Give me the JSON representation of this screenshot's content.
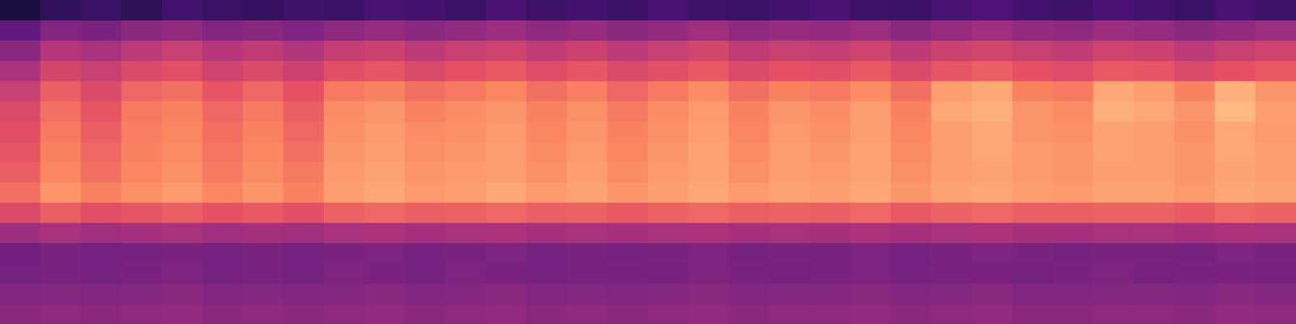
{
  "chart_data": {
    "type": "heatmap",
    "tick_labels": false,
    "grid": false,
    "color_range": [
      0,
      1
    ],
    "cells": [
      [
        0.12,
        0.18,
        0.2,
        0.17,
        0.22,
        0.2,
        0.19,
        0.21,
        0.2,
        0.23,
        0.22,
        0.2,
        0.24,
        0.21,
        0.22,
        0.2,
        0.23,
        0.21,
        0.2,
        0.22,
        0.24,
        0.21,
        0.2,
        0.23,
        0.25,
        0.22,
        0.21,
        0.24,
        0.22,
        0.2,
        0.23,
        0.21
      ],
      [
        0.3,
        0.38,
        0.36,
        0.4,
        0.42,
        0.38,
        0.4,
        0.37,
        0.41,
        0.43,
        0.4,
        0.42,
        0.44,
        0.41,
        0.43,
        0.4,
        0.42,
        0.45,
        0.41,
        0.43,
        0.42,
        0.44,
        0.4,
        0.43,
        0.45,
        0.42,
        0.41,
        0.44,
        0.43,
        0.4,
        0.42,
        0.44
      ],
      [
        0.4,
        0.5,
        0.47,
        0.52,
        0.55,
        0.5,
        0.53,
        0.49,
        0.54,
        0.56,
        0.52,
        0.55,
        0.57,
        0.53,
        0.56,
        0.52,
        0.55,
        0.58,
        0.53,
        0.55,
        0.54,
        0.57,
        0.52,
        0.56,
        0.58,
        0.55,
        0.53,
        0.57,
        0.56,
        0.52,
        0.55,
        0.57
      ],
      [
        0.48,
        0.58,
        0.55,
        0.6,
        0.62,
        0.57,
        0.6,
        0.56,
        0.62,
        0.64,
        0.6,
        0.63,
        0.65,
        0.61,
        0.64,
        0.6,
        0.62,
        0.65,
        0.6,
        0.63,
        0.62,
        0.65,
        0.6,
        0.64,
        0.66,
        0.63,
        0.61,
        0.65,
        0.64,
        0.6,
        0.63,
        0.65
      ],
      [
        0.55,
        0.66,
        0.6,
        0.68,
        0.7,
        0.64,
        0.68,
        0.63,
        0.72,
        0.74,
        0.7,
        0.72,
        0.75,
        0.7,
        0.73,
        0.68,
        0.72,
        0.76,
        0.7,
        0.74,
        0.72,
        0.76,
        0.7,
        0.8,
        0.82,
        0.74,
        0.72,
        0.82,
        0.8,
        0.74,
        0.84,
        0.78
      ],
      [
        0.6,
        0.7,
        0.64,
        0.72,
        0.74,
        0.68,
        0.72,
        0.66,
        0.76,
        0.78,
        0.74,
        0.76,
        0.78,
        0.74,
        0.77,
        0.72,
        0.76,
        0.79,
        0.74,
        0.78,
        0.76,
        0.8,
        0.74,
        0.82,
        0.84,
        0.78,
        0.76,
        0.84,
        0.82,
        0.78,
        0.86,
        0.8
      ],
      [
        0.62,
        0.72,
        0.66,
        0.73,
        0.75,
        0.7,
        0.74,
        0.68,
        0.77,
        0.79,
        0.76,
        0.77,
        0.79,
        0.75,
        0.78,
        0.74,
        0.77,
        0.8,
        0.75,
        0.79,
        0.77,
        0.8,
        0.75,
        0.8,
        0.82,
        0.78,
        0.77,
        0.81,
        0.8,
        0.77,
        0.82,
        0.79
      ],
      [
        0.64,
        0.74,
        0.68,
        0.74,
        0.76,
        0.71,
        0.75,
        0.7,
        0.78,
        0.8,
        0.77,
        0.78,
        0.8,
        0.76,
        0.79,
        0.75,
        0.78,
        0.81,
        0.76,
        0.8,
        0.78,
        0.81,
        0.76,
        0.8,
        0.82,
        0.79,
        0.78,
        0.81,
        0.8,
        0.78,
        0.82,
        0.8
      ],
      [
        0.66,
        0.75,
        0.7,
        0.75,
        0.77,
        0.72,
        0.76,
        0.72,
        0.79,
        0.81,
        0.78,
        0.79,
        0.8,
        0.77,
        0.8,
        0.76,
        0.79,
        0.81,
        0.77,
        0.8,
        0.79,
        0.81,
        0.77,
        0.8,
        0.81,
        0.79,
        0.78,
        0.8,
        0.8,
        0.78,
        0.81,
        0.8
      ],
      [
        0.7,
        0.78,
        0.74,
        0.77,
        0.79,
        0.75,
        0.78,
        0.74,
        0.8,
        0.82,
        0.79,
        0.8,
        0.82,
        0.79,
        0.81,
        0.78,
        0.8,
        0.82,
        0.79,
        0.81,
        0.8,
        0.82,
        0.78,
        0.81,
        0.82,
        0.8,
        0.79,
        0.81,
        0.81,
        0.79,
        0.82,
        0.81
      ],
      [
        0.6,
        0.66,
        0.62,
        0.64,
        0.66,
        0.63,
        0.65,
        0.62,
        0.67,
        0.68,
        0.66,
        0.67,
        0.68,
        0.66,
        0.67,
        0.65,
        0.67,
        0.68,
        0.66,
        0.67,
        0.66,
        0.68,
        0.65,
        0.67,
        0.68,
        0.66,
        0.66,
        0.67,
        0.67,
        0.65,
        0.68,
        0.67
      ],
      [
        0.44,
        0.47,
        0.45,
        0.46,
        0.47,
        0.45,
        0.46,
        0.45,
        0.47,
        0.48,
        0.46,
        0.47,
        0.48,
        0.46,
        0.47,
        0.46,
        0.47,
        0.48,
        0.46,
        0.47,
        0.46,
        0.48,
        0.46,
        0.47,
        0.48,
        0.46,
        0.46,
        0.47,
        0.47,
        0.46,
        0.48,
        0.47
      ],
      [
        0.34,
        0.36,
        0.35,
        0.35,
        0.36,
        0.35,
        0.36,
        0.35,
        0.36,
        0.37,
        0.35,
        0.36,
        0.37,
        0.35,
        0.36,
        0.35,
        0.36,
        0.37,
        0.35,
        0.36,
        0.36,
        0.37,
        0.35,
        0.36,
        0.37,
        0.36,
        0.35,
        0.36,
        0.36,
        0.35,
        0.37,
        0.36
      ],
      [
        0.35,
        0.36,
        0.35,
        0.36,
        0.37,
        0.35,
        0.36,
        0.35,
        0.37,
        0.36,
        0.35,
        0.37,
        0.36,
        0.35,
        0.36,
        0.36,
        0.35,
        0.37,
        0.36,
        0.35,
        0.36,
        0.37,
        0.35,
        0.36,
        0.36,
        0.35,
        0.36,
        0.37,
        0.35,
        0.36,
        0.36,
        0.35
      ],
      [
        0.38,
        0.39,
        0.38,
        0.39,
        0.4,
        0.38,
        0.39,
        0.38,
        0.39,
        0.4,
        0.38,
        0.39,
        0.4,
        0.38,
        0.39,
        0.38,
        0.39,
        0.4,
        0.38,
        0.39,
        0.39,
        0.4,
        0.38,
        0.39,
        0.4,
        0.38,
        0.38,
        0.39,
        0.39,
        0.38,
        0.4,
        0.39
      ],
      [
        0.4,
        0.41,
        0.4,
        0.41,
        0.42,
        0.4,
        0.41,
        0.4,
        0.41,
        0.42,
        0.4,
        0.41,
        0.42,
        0.4,
        0.41,
        0.4,
        0.41,
        0.42,
        0.4,
        0.41,
        0.41,
        0.42,
        0.4,
        0.41,
        0.42,
        0.4,
        0.4,
        0.41,
        0.41,
        0.4,
        0.42,
        0.41
      ]
    ]
  }
}
